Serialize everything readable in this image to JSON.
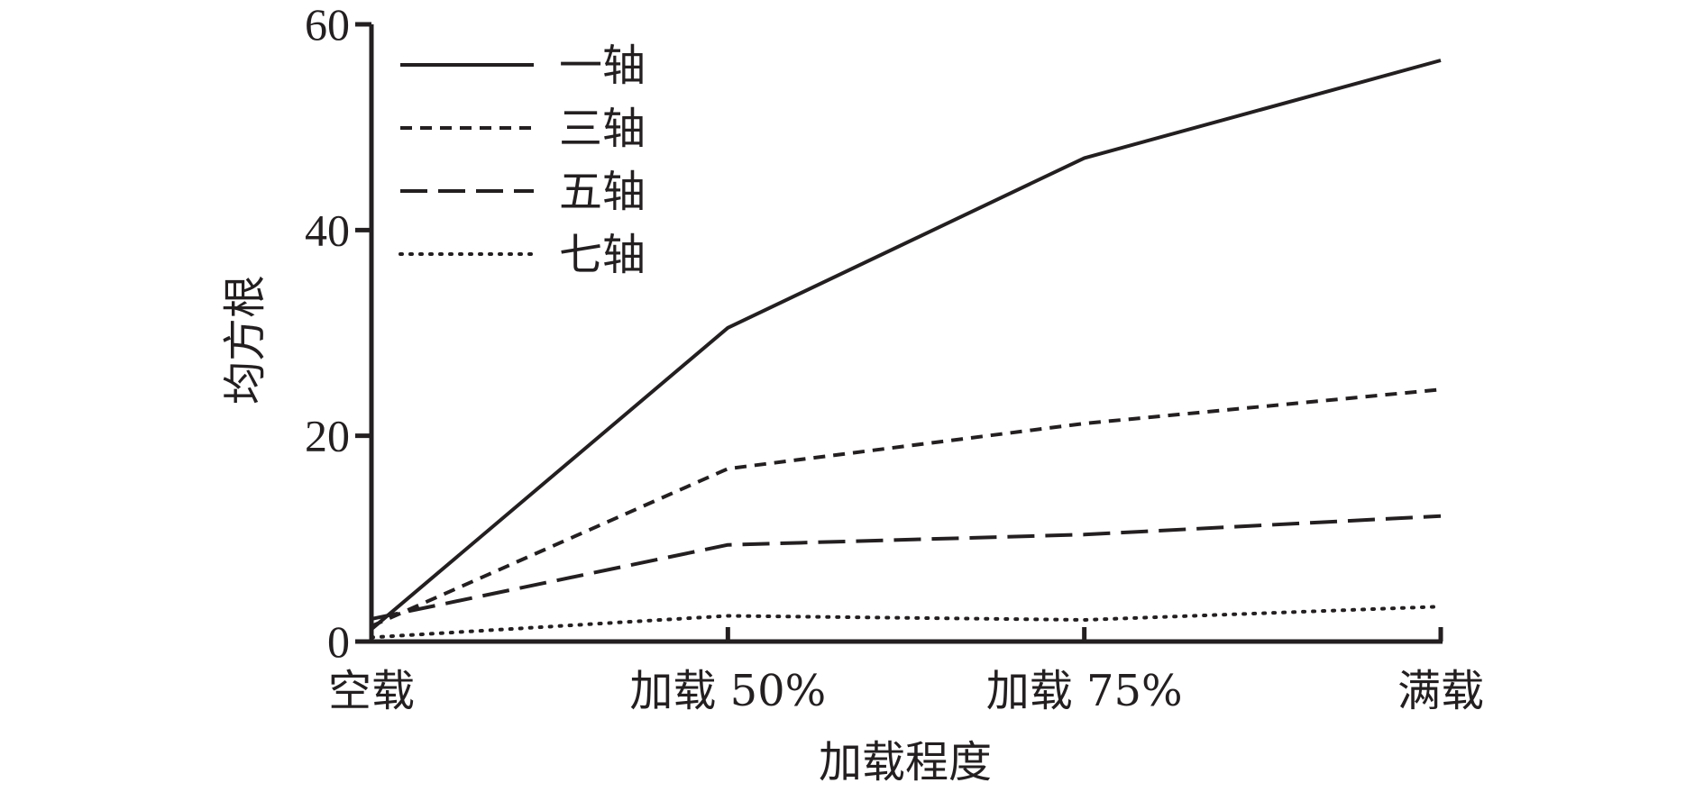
{
  "chart_data": {
    "type": "line",
    "categories": [
      "空载",
      "加载 50%",
      "加载 75%",
      "满载"
    ],
    "xlabel": "加载程度",
    "ylabel": "均方根",
    "ylim": [
      0,
      60
    ],
    "yticks": [
      0,
      20,
      40,
      60
    ],
    "grid": false,
    "legend_position": "top-left",
    "series": [
      {
        "name": "一轴",
        "values": [
          1.2,
          30.5,
          47.0,
          56.5
        ],
        "dash": "solid"
      },
      {
        "name": "三轴",
        "values": [
          1.5,
          16.8,
          21.2,
          24.5
        ],
        "dash": "short-dash"
      },
      {
        "name": "五轴",
        "values": [
          2.2,
          9.4,
          10.4,
          12.2
        ],
        "dash": "long-dash"
      },
      {
        "name": "七轴",
        "values": [
          0.4,
          2.5,
          2.1,
          3.4
        ],
        "dash": "dotted"
      }
    ]
  }
}
